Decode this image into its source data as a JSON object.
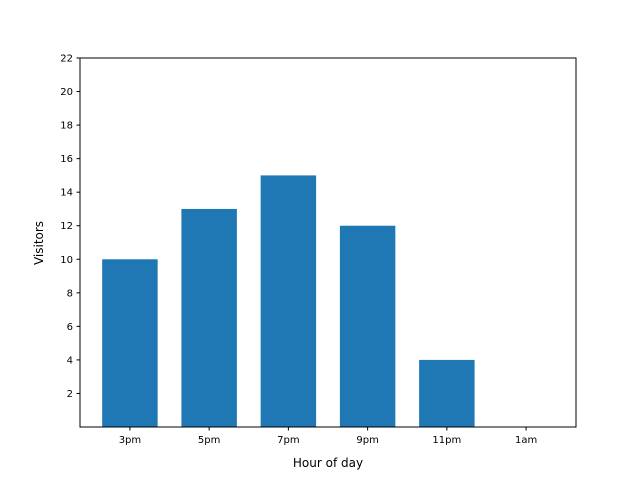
{
  "chart_data": {
    "type": "bar",
    "title": "",
    "xlabel": "Hour of day",
    "ylabel": "Visitors",
    "categories": [
      "3pm",
      "5pm",
      "7pm",
      "9pm",
      "11pm",
      "1am"
    ],
    "values": [
      10,
      13,
      15,
      12,
      4,
      0
    ],
    "ylim": [
      0,
      22
    ],
    "yticks": [
      2,
      4,
      6,
      8,
      10,
      12,
      14,
      16,
      18,
      20,
      22
    ],
    "grid": false,
    "bar_color": "#1f77b4"
  }
}
